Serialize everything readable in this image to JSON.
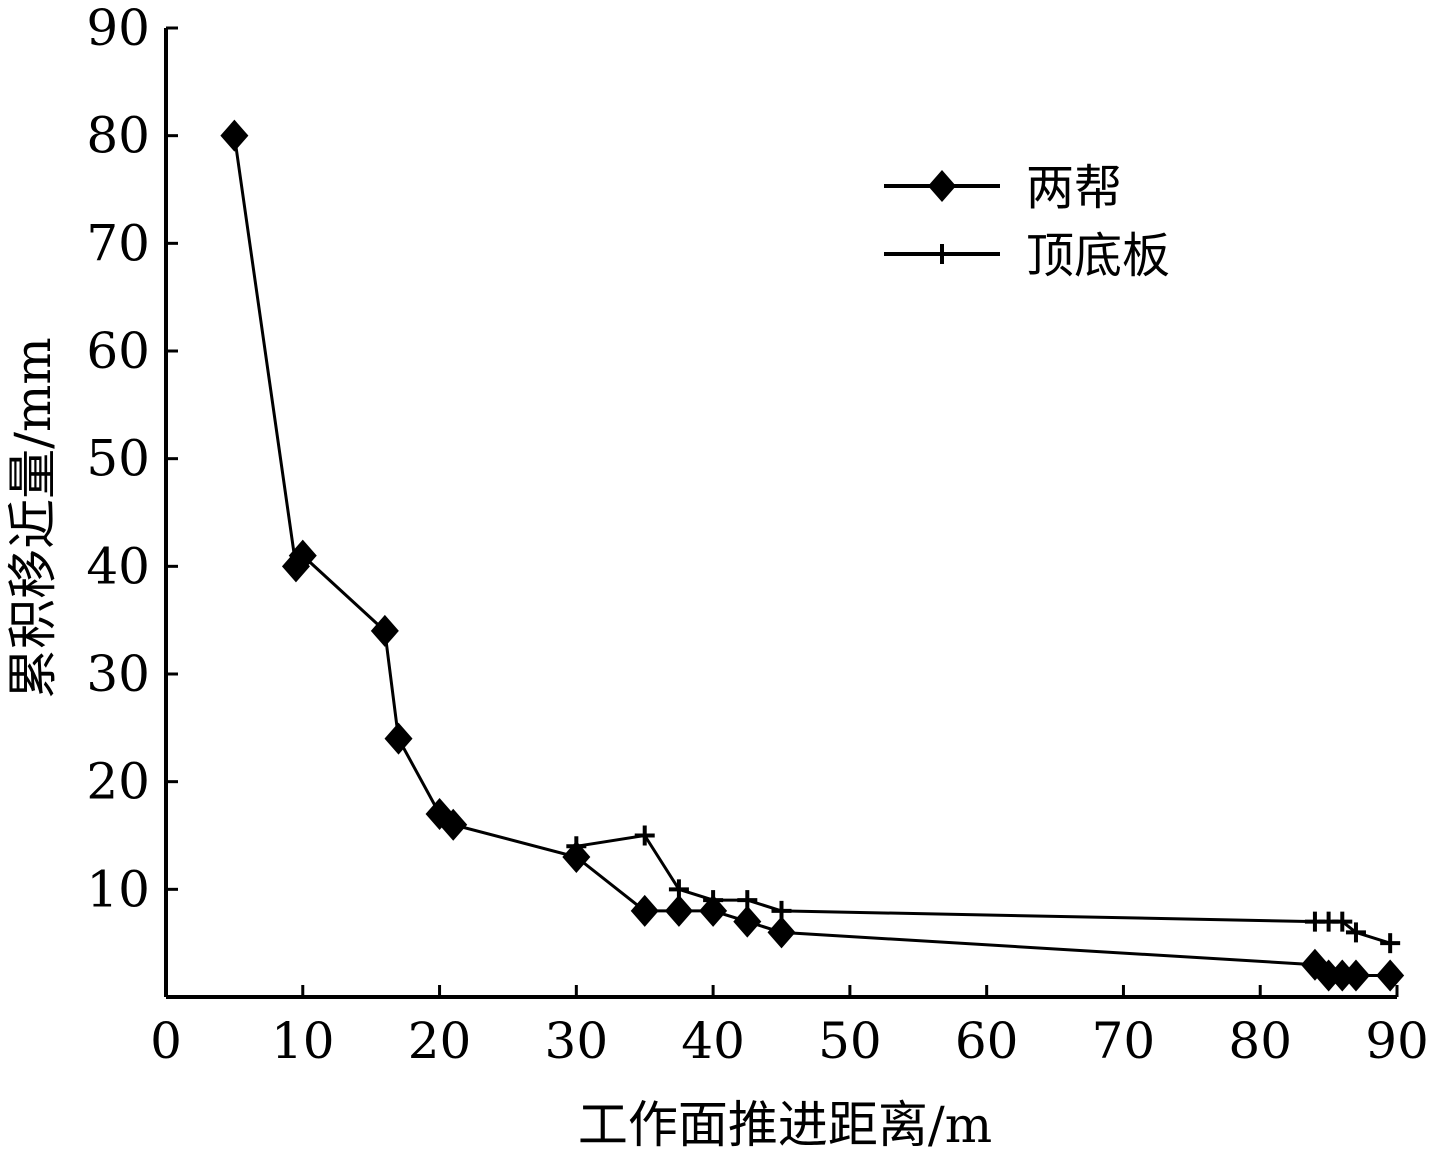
{
  "chart_data": {
    "type": "line",
    "title": "",
    "xlabel": "工作面推进距离/m",
    "ylabel": "累积移近量/mm",
    "xlim": [
      0,
      90
    ],
    "ylim": [
      0,
      90
    ],
    "x_ticks": [
      "0",
      "10",
      "20",
      "30",
      "40",
      "50",
      "60",
      "70",
      "80",
      "90"
    ],
    "y_ticks": [
      "10",
      "20",
      "30",
      "40",
      "50",
      "60",
      "70",
      "80",
      "90"
    ],
    "grid": false,
    "legend_position": "top-right",
    "series": [
      {
        "name": "两帮",
        "marker": "diamond",
        "x": [
          5,
          9.5,
          10,
          16,
          17,
          20,
          21,
          30,
          35,
          37.5,
          40,
          42.5,
          45,
          84,
          85,
          86,
          87,
          89.5
        ],
        "y": [
          80,
          40,
          41,
          34,
          24,
          17,
          16,
          13,
          8,
          8,
          8,
          7,
          6,
          3,
          2,
          2,
          2,
          2
        ]
      },
      {
        "name": "顶底板",
        "marker": "plus",
        "x": [
          30,
          35,
          37.5,
          40,
          42.5,
          45,
          84,
          85,
          86,
          87,
          89.5
        ],
        "y": [
          14,
          15,
          10,
          9,
          9,
          8,
          7,
          7,
          7,
          6,
          5
        ]
      }
    ]
  }
}
